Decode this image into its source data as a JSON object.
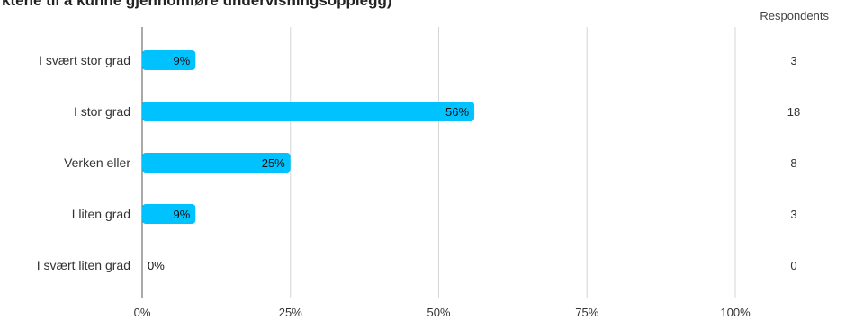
{
  "chart_data": {
    "type": "bar",
    "orientation": "horizontal",
    "title": "ktene til å kunne gjennomføre undervisningsopplegg)",
    "categories": [
      "I svært stor grad",
      "I stor grad",
      "Verken eller",
      "I liten grad",
      "I svært liten grad"
    ],
    "values": [
      9,
      56,
      25,
      9,
      0
    ],
    "value_labels": [
      "9%",
      "56%",
      "25%",
      "9%",
      "0%"
    ],
    "respondents_header": "Respondents",
    "respondents": [
      "3",
      "18",
      "8",
      "3",
      "0"
    ],
    "x_ticks": [
      "0%",
      "25%",
      "50%",
      "75%",
      "100%"
    ],
    "xlim": [
      0,
      100
    ],
    "grid": true,
    "colors": {
      "bar": "#00c2ff",
      "grid": "#d6d6d6",
      "axis": "#555555"
    }
  }
}
